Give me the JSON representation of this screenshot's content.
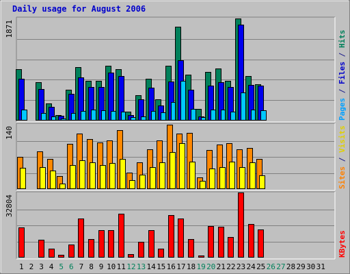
{
  "chart_data": {
    "type": "bar",
    "title": "Daily usage for August 2006",
    "days": [
      "1",
      "2",
      "3",
      "4",
      "5",
      "6",
      "7",
      "8",
      "9",
      "10",
      "11",
      "12",
      "13",
      "14",
      "15",
      "16",
      "17",
      "18",
      "19",
      "20",
      "21",
      "22",
      "23",
      "24",
      "25",
      "26",
      "27",
      "28",
      "29",
      "30",
      "31"
    ],
    "weekend_days": [
      "5",
      "6",
      "12",
      "13",
      "19",
      "20",
      "26",
      "27"
    ],
    "panels": [
      {
        "name": "hits-files-pages",
        "ymax_label": "1871",
        "ymax": 1871,
        "right_labels": [
          {
            "text": "Pages",
            "color": "#00a0ff"
          },
          {
            "text": " / ",
            "color": "#1a1a8a"
          },
          {
            "text": "Files",
            "color": "#0000cc"
          },
          {
            "text": " / ",
            "color": "#1a1a8a"
          },
          {
            "text": "Hits",
            "color": "#00805a"
          }
        ],
        "series": [
          {
            "name": "Hits",
            "color": "#00805a",
            "values": [
              940,
              0,
              700,
              310,
              100,
              570,
              980,
              730,
              730,
              1000,
              940,
              160,
              460,
              760,
              390,
              1000,
              1720,
              840,
              210,
              890,
              950,
              730,
              1870,
              820,
              660,
              0,
              0,
              0,
              0,
              0,
              0
            ]
          },
          {
            "name": "Files",
            "color": "#0000ee",
            "values": [
              770,
              0,
              580,
              250,
              90,
              490,
              790,
              620,
              620,
              880,
              820,
              100,
              390,
              600,
              270,
              720,
              1110,
              570,
              80,
              640,
              700,
              620,
              1760,
              650,
              640,
              0,
              0,
              0,
              0,
              0,
              0
            ]
          },
          {
            "name": "Pages",
            "color": "#00c8ff",
            "values": [
              200,
              0,
              140,
              70,
              40,
              140,
              180,
              200,
              190,
              180,
              160,
              60,
              80,
              180,
              150,
              340,
              730,
              210,
              60,
              200,
              200,
              160,
              520,
              200,
              190,
              0,
              0,
              0,
              0,
              0,
              0
            ]
          }
        ]
      },
      {
        "name": "visits-sites",
        "ymax_label": "140",
        "ymax": 140,
        "right_labels": [
          {
            "text": "Sites",
            "color": "#ff8000"
          },
          {
            "text": " / ",
            "color": "#1a1a8a"
          },
          {
            "text": "Visits",
            "color": "#e0d000"
          }
        ],
        "series": [
          {
            "name": "Sites",
            "color": "#ff8800",
            "values": [
              70,
              0,
              82,
              66,
              28,
              98,
              120,
              108,
              102,
              106,
              128,
              36,
              58,
              87,
              106,
              140,
              121,
              122,
              26,
              85,
              97,
              100,
              87,
              89,
              66,
              0,
              0,
              0,
              0,
              0,
              0
            ]
          },
          {
            "name": "Visits",
            "color": "#ffff00",
            "values": [
              46,
              0,
              48,
              40,
              12,
              52,
              62,
              58,
              52,
              56,
              66,
              20,
              32,
              48,
              58,
              80,
              100,
              60,
              18,
              44,
              48,
              60,
              48,
              58,
              30,
              0,
              0,
              0,
              0,
              0,
              0
            ]
          }
        ]
      },
      {
        "name": "kbytes",
        "ymax_label": "32804",
        "ymax": 32804,
        "right_labels": [
          {
            "text": "KBytes",
            "color": "#ff0000"
          }
        ],
        "series": [
          {
            "name": "KBytes",
            "color": "#ff0000",
            "values": [
              15200,
              0,
              9200,
              4400,
              1400,
              6800,
              19800,
              9500,
              14100,
              14000,
              22200,
              1700,
              8000,
              14100,
              4500,
              21800,
              20000,
              9500,
              1100,
              16000,
              15600,
              10500,
              33000,
              17000,
              14400,
              0,
              0,
              0,
              0,
              0,
              0
            ]
          }
        ]
      }
    ]
  }
}
